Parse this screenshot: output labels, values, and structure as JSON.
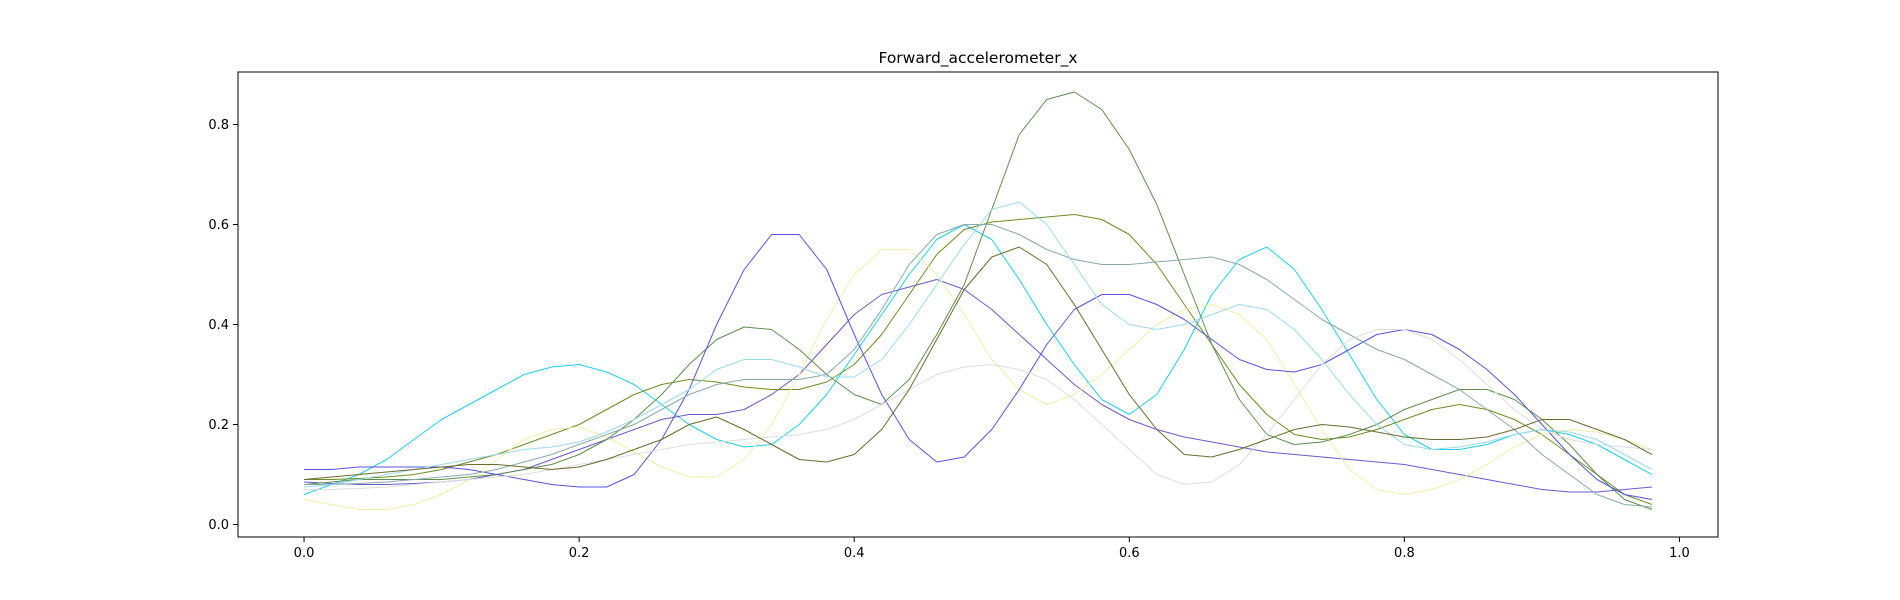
{
  "chart_data": {
    "type": "line",
    "title": "Forward_accelerometer_x",
    "xlabel": "",
    "ylabel": "",
    "xlim": [
      -0.048,
      1.028
    ],
    "ylim": [
      -0.025,
      0.905
    ],
    "xticks": [
      0.0,
      0.2,
      0.4,
      0.6,
      0.8,
      1.0
    ],
    "xtick_labels": [
      "0.0",
      "0.2",
      "0.4",
      "0.6",
      "0.8",
      "1.0"
    ],
    "yticks": [
      0.0,
      0.2,
      0.4,
      0.6,
      0.8
    ],
    "ytick_labels": [
      "0.0",
      "0.2",
      "0.4",
      "0.6",
      "0.8"
    ],
    "grid": false,
    "legend": "none",
    "x": [
      0.0,
      0.02,
      0.04,
      0.06,
      0.08,
      0.1,
      0.12,
      0.14,
      0.16,
      0.18,
      0.2,
      0.22,
      0.24,
      0.26,
      0.28,
      0.3,
      0.32,
      0.34,
      0.36,
      0.38,
      0.4,
      0.42,
      0.44,
      0.46,
      0.48,
      0.5,
      0.52,
      0.54,
      0.56,
      0.58,
      0.6,
      0.62,
      0.64,
      0.66,
      0.68,
      0.7,
      0.72,
      0.74,
      0.76,
      0.78,
      0.8,
      0.82,
      0.84,
      0.86,
      0.88,
      0.9,
      0.92,
      0.94,
      0.96,
      0.98
    ],
    "series": [
      {
        "color": "#22ccee",
        "values": [
          0.06,
          0.08,
          0.1,
          0.13,
          0.17,
          0.21,
          0.24,
          0.27,
          0.3,
          0.315,
          0.32,
          0.305,
          0.28,
          0.24,
          0.2,
          0.17,
          0.155,
          0.16,
          0.2,
          0.26,
          0.34,
          0.42,
          0.5,
          0.57,
          0.6,
          0.57,
          0.49,
          0.4,
          0.32,
          0.25,
          0.22,
          0.26,
          0.35,
          0.46,
          0.53,
          0.555,
          0.51,
          0.43,
          0.34,
          0.25,
          0.18,
          0.15,
          0.15,
          0.16,
          0.18,
          0.19,
          0.18,
          0.16,
          0.13,
          0.1
        ]
      },
      {
        "color": "#6a5acd",
        "values": [
          0.085,
          0.082,
          0.08,
          0.08,
          0.082,
          0.085,
          0.09,
          0.1,
          0.11,
          0.13,
          0.15,
          0.17,
          0.19,
          0.21,
          0.22,
          0.22,
          0.23,
          0.26,
          0.3,
          0.36,
          0.42,
          0.46,
          0.475,
          0.49,
          0.47,
          0.43,
          0.38,
          0.33,
          0.28,
          0.24,
          0.21,
          0.19,
          0.175,
          0.165,
          0.155,
          0.145,
          0.14,
          0.135,
          0.13,
          0.125,
          0.12,
          0.11,
          0.1,
          0.09,
          0.08,
          0.07,
          0.065,
          0.065,
          0.07,
          0.075
        ]
      },
      {
        "color": "#6b8e23",
        "values": [
          0.09,
          0.09,
          0.092,
          0.095,
          0.1,
          0.11,
          0.125,
          0.14,
          0.16,
          0.18,
          0.2,
          0.23,
          0.26,
          0.28,
          0.29,
          0.285,
          0.275,
          0.27,
          0.27,
          0.285,
          0.32,
          0.38,
          0.46,
          0.54,
          0.59,
          0.605,
          0.61,
          0.615,
          0.62,
          0.61,
          0.58,
          0.52,
          0.44,
          0.36,
          0.28,
          0.22,
          0.18,
          0.17,
          0.175,
          0.19,
          0.21,
          0.23,
          0.24,
          0.23,
          0.21,
          0.18,
          0.14,
          0.1,
          0.06,
          0.04
        ]
      },
      {
        "color": "#eeeeaa",
        "values": [
          0.05,
          0.04,
          0.03,
          0.03,
          0.04,
          0.06,
          0.09,
          0.13,
          0.17,
          0.19,
          0.195,
          0.175,
          0.145,
          0.115,
          0.095,
          0.095,
          0.13,
          0.2,
          0.3,
          0.41,
          0.5,
          0.55,
          0.55,
          0.5,
          0.42,
          0.33,
          0.27,
          0.24,
          0.26,
          0.3,
          0.35,
          0.4,
          0.43,
          0.44,
          0.42,
          0.37,
          0.28,
          0.19,
          0.11,
          0.07,
          0.06,
          0.07,
          0.09,
          0.12,
          0.155,
          0.18,
          0.19,
          0.185,
          0.17,
          0.15
        ]
      },
      {
        "color": "#5f8f4f",
        "values": [
          0.08,
          0.085,
          0.09,
          0.09,
          0.09,
          0.09,
          0.095,
          0.1,
          0.11,
          0.12,
          0.14,
          0.17,
          0.21,
          0.26,
          0.32,
          0.37,
          0.395,
          0.39,
          0.35,
          0.3,
          0.26,
          0.24,
          0.29,
          0.38,
          0.48,
          0.63,
          0.78,
          0.85,
          0.865,
          0.83,
          0.75,
          0.64,
          0.5,
          0.36,
          0.25,
          0.18,
          0.16,
          0.165,
          0.18,
          0.2,
          0.23,
          0.25,
          0.27,
          0.27,
          0.25,
          0.21,
          0.16,
          0.1,
          0.05,
          0.03
        ]
      },
      {
        "color": "#5555dd",
        "values": [
          0.11,
          0.11,
          0.115,
          0.115,
          0.115,
          0.115,
          0.11,
          0.1,
          0.09,
          0.08,
          0.075,
          0.075,
          0.1,
          0.17,
          0.27,
          0.4,
          0.51,
          0.58,
          0.58,
          0.51,
          0.38,
          0.26,
          0.17,
          0.125,
          0.135,
          0.19,
          0.27,
          0.36,
          0.43,
          0.46,
          0.46,
          0.44,
          0.41,
          0.37,
          0.33,
          0.31,
          0.305,
          0.32,
          0.35,
          0.38,
          0.39,
          0.38,
          0.35,
          0.31,
          0.26,
          0.2,
          0.14,
          0.09,
          0.06,
          0.05
        ]
      },
      {
        "color": "#88aaaa",
        "values": [
          0.08,
          0.08,
          0.082,
          0.085,
          0.09,
          0.095,
          0.1,
          0.11,
          0.125,
          0.14,
          0.16,
          0.18,
          0.2,
          0.23,
          0.26,
          0.28,
          0.29,
          0.29,
          0.29,
          0.3,
          0.35,
          0.43,
          0.52,
          0.58,
          0.6,
          0.6,
          0.58,
          0.55,
          0.53,
          0.52,
          0.52,
          0.525,
          0.53,
          0.535,
          0.52,
          0.49,
          0.45,
          0.41,
          0.38,
          0.35,
          0.33,
          0.3,
          0.27,
          0.23,
          0.19,
          0.14,
          0.1,
          0.06,
          0.04,
          0.035
        ]
      },
      {
        "color": "#dddddd",
        "values": [
          0.07,
          0.07,
          0.072,
          0.075,
          0.08,
          0.085,
          0.09,
          0.095,
          0.1,
          0.11,
          0.12,
          0.13,
          0.14,
          0.15,
          0.16,
          0.165,
          0.17,
          0.175,
          0.18,
          0.19,
          0.21,
          0.24,
          0.27,
          0.3,
          0.315,
          0.32,
          0.31,
          0.29,
          0.25,
          0.2,
          0.15,
          0.1,
          0.08,
          0.085,
          0.12,
          0.18,
          0.25,
          0.32,
          0.37,
          0.39,
          0.39,
          0.37,
          0.33,
          0.28,
          0.23,
          0.19,
          0.17,
          0.16,
          0.155,
          0.15
        ]
      },
      {
        "color": "#9cd9ee",
        "values": [
          0.075,
          0.08,
          0.09,
          0.1,
          0.11,
          0.12,
          0.13,
          0.14,
          0.15,
          0.155,
          0.165,
          0.185,
          0.21,
          0.24,
          0.27,
          0.31,
          0.33,
          0.33,
          0.315,
          0.295,
          0.295,
          0.33,
          0.4,
          0.48,
          0.56,
          0.63,
          0.645,
          0.6,
          0.52,
          0.44,
          0.4,
          0.39,
          0.4,
          0.42,
          0.44,
          0.43,
          0.39,
          0.33,
          0.26,
          0.2,
          0.16,
          0.15,
          0.155,
          0.165,
          0.18,
          0.19,
          0.185,
          0.17,
          0.14,
          0.11
        ]
      },
      {
        "color": "#6b6b30",
        "values": [
          0.09,
          0.095,
          0.1,
          0.105,
          0.11,
          0.115,
          0.12,
          0.12,
          0.115,
          0.11,
          0.115,
          0.13,
          0.15,
          0.17,
          0.2,
          0.215,
          0.19,
          0.16,
          0.13,
          0.125,
          0.14,
          0.19,
          0.27,
          0.37,
          0.47,
          0.535,
          0.555,
          0.52,
          0.44,
          0.35,
          0.26,
          0.19,
          0.14,
          0.135,
          0.15,
          0.17,
          0.19,
          0.2,
          0.195,
          0.185,
          0.175,
          0.17,
          0.17,
          0.175,
          0.19,
          0.21,
          0.21,
          0.19,
          0.17,
          0.14
        ]
      }
    ]
  }
}
